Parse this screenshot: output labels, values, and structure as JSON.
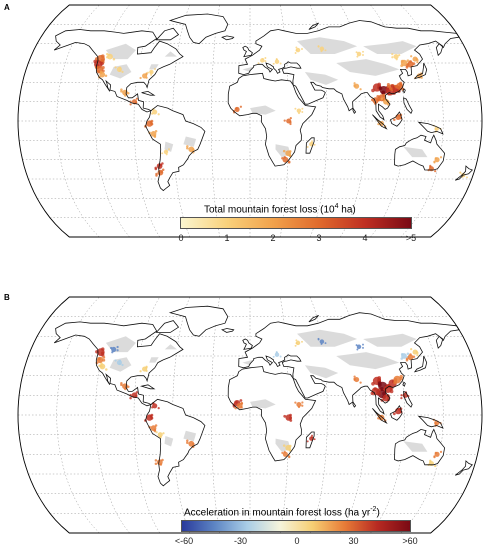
{
  "panels": [
    {
      "letter": "A",
      "colorbar": {
        "title": "Total mountain forest loss (10",
        "title_sup": "4",
        "title_end": " ha)",
        "ticks": [
          "0",
          "1",
          "2",
          "3",
          "4",
          ">5"
        ],
        "colors": [
          "#fbf6d0",
          "#f9d17b",
          "#f1a24c",
          "#e06a2c",
          "#bf2f22",
          "#7a0a14"
        ]
      }
    },
    {
      "letter": "B",
      "colorbar": {
        "title": "Acceleration in mountain forest loss (ha yr",
        "title_sup": "-2",
        "title_end": ")",
        "ticks": [
          "<-60",
          "-30",
          "0",
          "30",
          ">60"
        ],
        "colors": [
          "#2a3a9c",
          "#5d85c4",
          "#a9cde6",
          "#f5f4dc",
          "#f6cf74",
          "#e77b37",
          "#b72a22",
          "#7a0a14"
        ]
      }
    }
  ],
  "legend_colors": {
    "ocean": "#ffffff",
    "land_no_data": "#d9d9d9",
    "coast": "#111111",
    "graticule": "#9a9a9a"
  }
}
